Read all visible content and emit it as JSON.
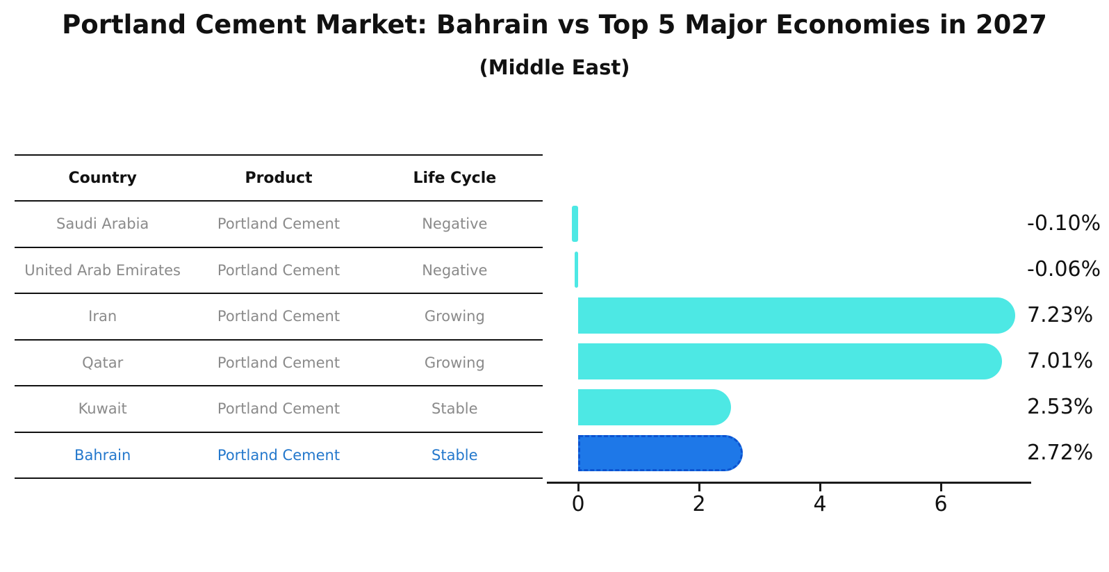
{
  "title": "Portland Cement Market: Bahrain vs Top 5 Major Economies in 2027",
  "subtitle": "(Middle East)",
  "table": {
    "headers": [
      "Country",
      "Product",
      "Life Cycle"
    ],
    "rows": [
      {
        "country": "Saudi Arabia",
        "product": "Portland Cement",
        "life_cycle": "Negative"
      },
      {
        "country": "United Arab Emirates",
        "product": "Portland Cement",
        "life_cycle": "Negative"
      },
      {
        "country": "Iran",
        "product": "Portland Cement",
        "life_cycle": "Growing"
      },
      {
        "country": "Qatar",
        "product": "Portland Cement",
        "life_cycle": "Growing"
      },
      {
        "country": "Kuwait",
        "product": "Portland Cement",
        "life_cycle": "Stable"
      },
      {
        "country": "Bahrain",
        "product": "Portland Cement",
        "life_cycle": "Stable"
      }
    ],
    "highlight_row": "Bahrain"
  },
  "chart_data": {
    "type": "bar",
    "orientation": "horizontal",
    "title": "Portland Cement Market: Bahrain vs Top 5 Major Economies in 2027",
    "subtitle": "(Middle East)",
    "categories": [
      "Saudi Arabia",
      "United Arab Emirates",
      "Iran",
      "Qatar",
      "Kuwait",
      "Bahrain"
    ],
    "values": [
      -0.1,
      -0.06,
      7.23,
      7.01,
      2.53,
      2.72
    ],
    "value_labels": [
      "-0.10%",
      "-0.06%",
      "7.23%",
      "7.01%",
      "2.53%",
      "2.72%"
    ],
    "x_ticks": [
      "0",
      "2",
      "4",
      "6"
    ],
    "x_tick_values": [
      0,
      2,
      4,
      6
    ],
    "xlim": [
      -0.52,
      7.5
    ],
    "grid": false,
    "legend": false,
    "bar_color": "#4DE8E4",
    "highlight_color": "#1E78E8",
    "highlight_index": 5,
    "highlight_category": "Bahrain"
  },
  "colors": {
    "bar": "#4DE8E4",
    "highlight_bar": "#1E78E8",
    "highlight_border": "#0C53D0",
    "highlight_text": "#2478CC",
    "muted_text": "#8a8a8a",
    "text": "#111111",
    "background": "#ffffff"
  }
}
